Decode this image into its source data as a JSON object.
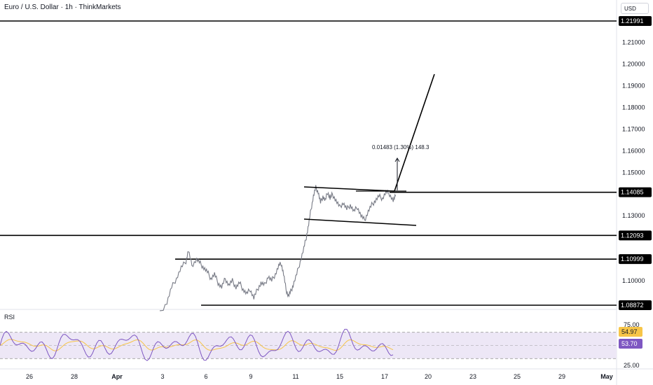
{
  "title": "Euro / U.S. Dollar · 1h · ThinkMarkets",
  "currency_label": "USD",
  "measure_label": "0.01483 (1.30%) 148.3",
  "rsi_label": "RSI",
  "colors": {
    "line": "#000000",
    "price": "#787b86",
    "rsi": "#7e57c2",
    "rsi_ma": "#f7c548",
    "rsi_band": "#ede7f6"
  },
  "chart_data": {
    "type": "line",
    "symbol": "EURUSD",
    "timeframe": "1h",
    "x_ticks": [
      "26",
      "28",
      "Apr",
      "3",
      "6",
      "9",
      "11",
      "15",
      "17",
      "20",
      "23",
      "25",
      "29",
      "May"
    ],
    "y_ticks": [
      "1.21000",
      "1.20000",
      "1.19000",
      "1.18000",
      "1.17000",
      "1.16000",
      "1.15000",
      "1.13000",
      "1.10000"
    ],
    "ylim": [
      1.0855,
      1.2255
    ],
    "level_labels": [
      "1.21991",
      "1.14085",
      "1.12093",
      "1.10999",
      "1.08872"
    ],
    "price_path": [
      {
        "x": 0,
        "y": 1.085
      },
      {
        "x": 6,
        "y": 1.09
      },
      {
        "x": 10,
        "y": 1.097
      },
      {
        "x": 14,
        "y": 1.101
      },
      {
        "x": 18,
        "y": 1.106
      },
      {
        "x": 22,
        "y": 1.109
      },
      {
        "x": 24,
        "y": 1.114
      },
      {
        "x": 27,
        "y": 1.107
      },
      {
        "x": 31,
        "y": 1.11
      },
      {
        "x": 34,
        "y": 1.108
      },
      {
        "x": 37,
        "y": 1.106
      },
      {
        "x": 40,
        "y": 1.104
      },
      {
        "x": 43,
        "y": 1.101
      },
      {
        "x": 46,
        "y": 1.103
      },
      {
        "x": 49,
        "y": 1.099
      },
      {
        "x": 52,
        "y": 1.097
      },
      {
        "x": 55,
        "y": 1.101
      },
      {
        "x": 58,
        "y": 1.098
      },
      {
        "x": 61,
        "y": 1.1
      },
      {
        "x": 64,
        "y": 1.097
      },
      {
        "x": 67,
        "y": 1.099
      },
      {
        "x": 70,
        "y": 1.096
      },
      {
        "x": 73,
        "y": 1.094
      },
      {
        "x": 76,
        "y": 1.096
      },
      {
        "x": 79,
        "y": 1.092
      },
      {
        "x": 82,
        "y": 1.096
      },
      {
        "x": 85,
        "y": 1.099
      },
      {
        "x": 88,
        "y": 1.098
      },
      {
        "x": 91,
        "y": 1.102
      },
      {
        "x": 94,
        "y": 1.1
      },
      {
        "x": 97,
        "y": 1.103
      },
      {
        "x": 100,
        "y": 1.107
      },
      {
        "x": 102,
        "y": 1.108
      },
      {
        "x": 104,
        "y": 1.103
      },
      {
        "x": 106,
        "y": 1.096
      },
      {
        "x": 108,
        "y": 1.093
      },
      {
        "x": 110,
        "y": 1.095
      },
      {
        "x": 112,
        "y": 1.098
      },
      {
        "x": 115,
        "y": 1.103
      },
      {
        "x": 118,
        "y": 1.109
      },
      {
        "x": 121,
        "y": 1.115
      },
      {
        "x": 123,
        "y": 1.12
      },
      {
        "x": 125,
        "y": 1.126
      },
      {
        "x": 127,
        "y": 1.133
      },
      {
        "x": 129,
        "y": 1.139
      },
      {
        "x": 131,
        "y": 1.143
      },
      {
        "x": 133,
        "y": 1.141
      },
      {
        "x": 135,
        "y": 1.136
      },
      {
        "x": 137,
        "y": 1.139
      },
      {
        "x": 139,
        "y": 1.137
      },
      {
        "x": 141,
        "y": 1.141
      },
      {
        "x": 143,
        "y": 1.138
      },
      {
        "x": 145,
        "y": 1.14
      },
      {
        "x": 148,
        "y": 1.137
      },
      {
        "x": 151,
        "y": 1.134
      },
      {
        "x": 154,
        "y": 1.136
      },
      {
        "x": 157,
        "y": 1.133
      },
      {
        "x": 160,
        "y": 1.135
      },
      {
        "x": 163,
        "y": 1.132
      },
      {
        "x": 166,
        "y": 1.134
      },
      {
        "x": 169,
        "y": 1.13
      },
      {
        "x": 172,
        "y": 1.128
      },
      {
        "x": 175,
        "y": 1.132
      },
      {
        "x": 178,
        "y": 1.135
      },
      {
        "x": 181,
        "y": 1.137
      },
      {
        "x": 184,
        "y": 1.139
      },
      {
        "x": 187,
        "y": 1.138
      },
      {
        "x": 190,
        "y": 1.141
      },
      {
        "x": 193,
        "y": 1.14
      },
      {
        "x": 196,
        "y": 1.137
      },
      {
        "x": 198,
        "y": 1.139
      }
    ],
    "rsi": {
      "levels": [
        "75.00",
        "25.00"
      ],
      "value": "53.70",
      "ma_value": "54.97"
    }
  }
}
